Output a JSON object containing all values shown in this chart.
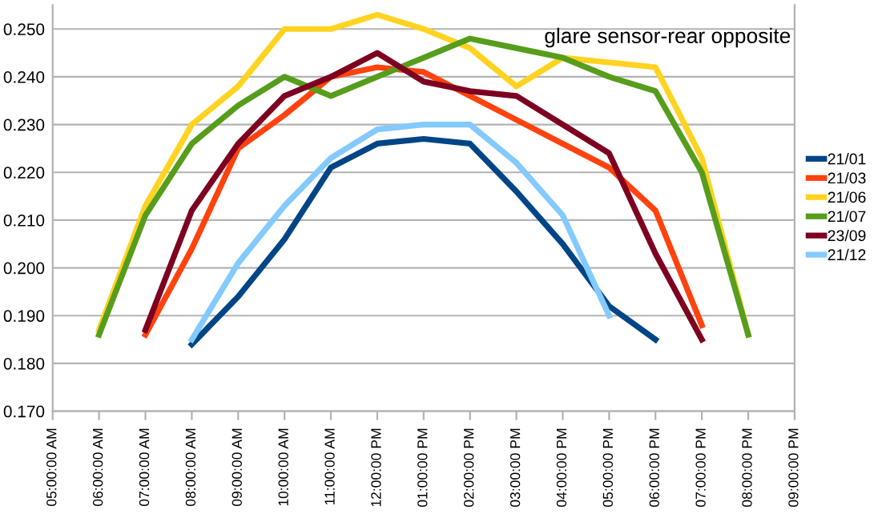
{
  "chart_data": {
    "type": "line",
    "annotations": [
      "glare sensor-rear opposite"
    ],
    "x": [
      6,
      7,
      8,
      9,
      10,
      11,
      12,
      13,
      14,
      15,
      16,
      17,
      18,
      19,
      20
    ],
    "series": [
      {
        "name": "21/01",
        "color": "#004586",
        "values": [
          null,
          null,
          0.184,
          0.194,
          0.206,
          0.221,
          0.226,
          0.227,
          0.226,
          0.216,
          0.205,
          0.192,
          0.185,
          null,
          null
        ]
      },
      {
        "name": "21/03",
        "color": "#ff420e",
        "values": [
          null,
          0.186,
          0.204,
          0.225,
          0.232,
          0.24,
          0.242,
          0.241,
          0.236,
          0.231,
          0.226,
          0.221,
          0.212,
          0.188,
          null
        ]
      },
      {
        "name": "21/06",
        "color": "#ffd320",
        "values": [
          0.187,
          0.213,
          0.23,
          0.238,
          0.25,
          0.25,
          0.253,
          0.25,
          0.246,
          0.238,
          0.244,
          0.243,
          0.242,
          0.223,
          0.186
        ]
      },
      {
        "name": "21/07",
        "color": "#579d1c",
        "values": [
          0.186,
          0.211,
          0.226,
          0.234,
          0.24,
          0.236,
          0.24,
          0.244,
          0.248,
          0.246,
          0.244,
          0.24,
          0.237,
          0.22,
          0.186
        ]
      },
      {
        "name": "23/09",
        "color": "#7e0021",
        "values": [
          null,
          0.187,
          0.212,
          0.226,
          0.236,
          0.24,
          0.245,
          0.239,
          0.237,
          0.236,
          0.23,
          0.224,
          0.203,
          0.185,
          null
        ]
      },
      {
        "name": "21/12",
        "color": "#83caff",
        "values": [
          null,
          null,
          0.185,
          0.201,
          0.213,
          0.223,
          0.229,
          0.23,
          0.23,
          0.222,
          0.211,
          0.19,
          null,
          null,
          null
        ]
      }
    ],
    "xlim": [
      5,
      21
    ],
    "xticks": [
      {
        "value": 5,
        "label": "05:00:00 AM"
      },
      {
        "value": 6,
        "label": "06:00:00 AM"
      },
      {
        "value": 7,
        "label": "07:00:00 AM"
      },
      {
        "value": 8,
        "label": "08:00:00 AM"
      },
      {
        "value": 9,
        "label": "09:00:00 AM"
      },
      {
        "value": 10,
        "label": "10:00:00 AM"
      },
      {
        "value": 11,
        "label": "11:00:00 AM"
      },
      {
        "value": 12,
        "label": "12:00:00 PM"
      },
      {
        "value": 13,
        "label": "01:00:00 PM"
      },
      {
        "value": 14,
        "label": "02:00:00 PM"
      },
      {
        "value": 15,
        "label": "03:00:00 PM"
      },
      {
        "value": 16,
        "label": "04:00:00 PM"
      },
      {
        "value": 17,
        "label": "05:00:00 PM"
      },
      {
        "value": 18,
        "label": "06:00:00 PM"
      },
      {
        "value": 19,
        "label": "07:00:00 PM"
      },
      {
        "value": 20,
        "label": "08:00:00 PM"
      },
      {
        "value": 21,
        "label": "09:00:00 PM"
      }
    ],
    "ylim": [
      0.17,
      0.255
    ],
    "yticks": [
      {
        "value": 0.17,
        "label": "0.170"
      },
      {
        "value": 0.18,
        "label": "0.180"
      },
      {
        "value": 0.19,
        "label": "0.190"
      },
      {
        "value": 0.2,
        "label": "0.200"
      },
      {
        "value": 0.21,
        "label": "0.210"
      },
      {
        "value": 0.22,
        "label": "0.220"
      },
      {
        "value": 0.23,
        "label": "0.230"
      },
      {
        "value": 0.24,
        "label": "0.240"
      },
      {
        "value": 0.25,
        "label": "0.250"
      }
    ],
    "grid": "y",
    "legend": "right",
    "marker": "none",
    "line_style": "solid"
  }
}
